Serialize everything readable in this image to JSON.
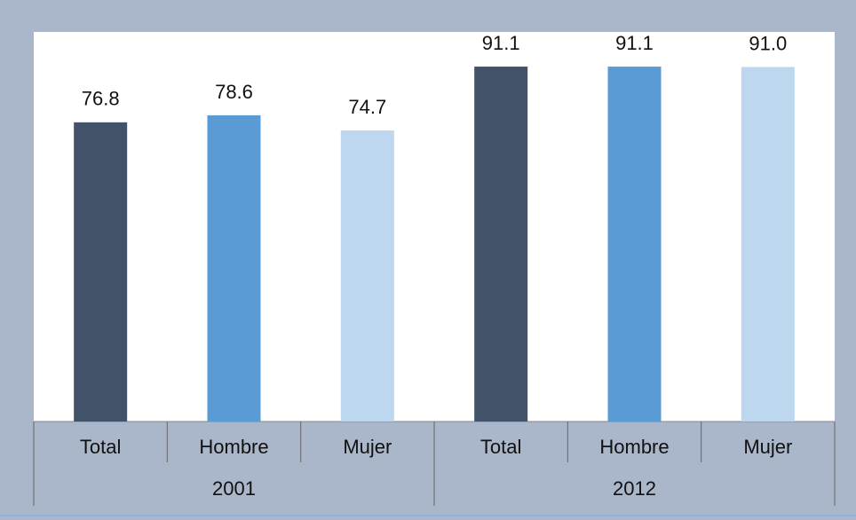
{
  "chart_data": {
    "type": "bar",
    "categories": [
      "Total",
      "Hombre",
      "Mujer",
      "Total",
      "Hombre",
      "Mujer"
    ],
    "groups": [
      "2001",
      "2012"
    ],
    "values": [
      76.8,
      78.6,
      74.7,
      91.1,
      91.1,
      91.0
    ],
    "value_labels": [
      "76.8",
      "78.6",
      "74.7",
      "91.1",
      "91.1",
      "91.0"
    ],
    "colors": [
      "#425369",
      "#5b9bd5",
      "#bdd7ee",
      "#425369",
      "#5b9bd5",
      "#bdd7ee"
    ],
    "ylim": [
      0,
      100
    ]
  }
}
